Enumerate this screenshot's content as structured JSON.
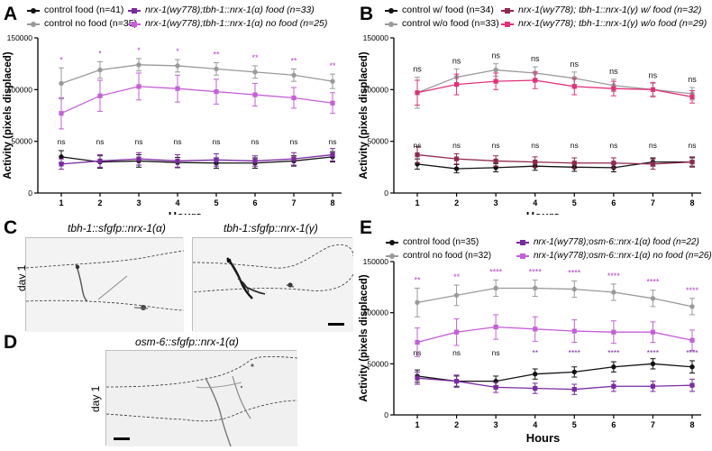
{
  "panels": {
    "A": {
      "letter": "A"
    },
    "B": {
      "letter": "B"
    },
    "C": {
      "letter": "C"
    },
    "D": {
      "letter": "D"
    },
    "E": {
      "letter": "E"
    }
  },
  "colors": {
    "black": "#111111",
    "gray": "#9a9a9a",
    "purple": "#7a2aa0",
    "violet": "#c45fd8",
    "darkred": "#8e2a4a",
    "pink": "#e0327a",
    "sig_purple": "#b340c7"
  },
  "legendA": [
    {
      "label": "control food (n=41)",
      "color": "#111111",
      "marker": "dot"
    },
    {
      "label": "control no food (n=35)",
      "color": "#9a9a9a",
      "marker": "dot"
    },
    {
      "label": "nrx-1(wy778);tbh-1::nrx-1(α) food (n=33)",
      "color": "#7a2aa0",
      "marker": "square"
    },
    {
      "label": "nrx-1(wy778);tbh-1::nrx-1(α) no food (n=25)",
      "color": "#c45fd8",
      "marker": "square"
    }
  ],
  "legendB": [
    {
      "label": "control w/ food (n=34)",
      "color": "#111111",
      "marker": "dot"
    },
    {
      "label": "control w/o food (n=33)",
      "color": "#9a9a9a",
      "marker": "dot"
    },
    {
      "label": "nrx-1(wy778); tbh-1::nrx-1(γ) w/ food (n=32)",
      "color": "#8e2a4a",
      "marker": "square"
    },
    {
      "label": "nrx-1(wy778); tbh-1::nrx-1(γ)  w/o food (n=29)",
      "color": "#e0327a",
      "marker": "square"
    }
  ],
  "legendE": [
    {
      "label": "control food (n=35)",
      "color": "#111111",
      "marker": "dot"
    },
    {
      "label": "control no food (n=32)",
      "color": "#9a9a9a",
      "marker": "dot"
    },
    {
      "label": "nrx-1(wy778);osm-6::nrx-1(α) food (n=22)",
      "color": "#7a2aa0",
      "marker": "square"
    },
    {
      "label": "nrx-1(wy778);osm-6::nrx-1(α) no food (n=26)",
      "color": "#c45fd8",
      "marker": "square"
    }
  ],
  "micrographs": {
    "c_left_title": "tbh-1::sfgfp::nrx-1(α)",
    "c_right_title": "tbh-1:sfgfp::nrx-1(γ)",
    "d_title": "osm-6::sfgfp::nrx-1(α)",
    "c_day": "day 1",
    "d_day": "day 1"
  },
  "chart_data": [
    {
      "id": "A",
      "type": "line",
      "xlabel": "Hours",
      "ylabel": "Activity (pixels displaced)",
      "x": [
        1,
        2,
        3,
        4,
        5,
        6,
        7,
        8
      ],
      "ylim": [
        0,
        150000
      ],
      "yticks": [
        0,
        50000,
        100000,
        150000
      ],
      "series": [
        {
          "name": "control food (n=41)",
          "color": "#111111",
          "marker": "dot",
          "values": [
            35000,
            30000,
            31000,
            29500,
            29000,
            29000,
            31000,
            35000
          ],
          "errors": [
            6000,
            6000,
            6000,
            5000,
            5000,
            5000,
            5000,
            5000
          ]
        },
        {
          "name": "control no food (n=35)",
          "color": "#9a9a9a",
          "marker": "dot",
          "values": [
            106000,
            119000,
            124000,
            123000,
            120000,
            117000,
            114000,
            108000
          ],
          "errors": [
            15000,
            8000,
            6000,
            6000,
            6000,
            6000,
            6000,
            7000
          ]
        },
        {
          "name": "nrx-1(wy778);tbh-1::nrx-1(α) food (n=33)",
          "color": "#7a2aa0",
          "marker": "square",
          "values": [
            28000,
            31000,
            33000,
            31000,
            32000,
            31000,
            33000,
            37000
          ],
          "errors": [
            5000,
            6000,
            6000,
            6000,
            6000,
            5000,
            6000,
            6000
          ]
        },
        {
          "name": "nrx-1(wy778);tbh-1::nrx-1(α) no food (n=25)",
          "color": "#c45fd8",
          "marker": "square",
          "values": [
            77000,
            94000,
            103000,
            101000,
            98000,
            95000,
            92000,
            87000
          ],
          "errors": [
            15000,
            15000,
            13000,
            13000,
            12000,
            11000,
            10000,
            10000
          ]
        }
      ],
      "sig_upper": [
        "*",
        "*",
        "*",
        "*",
        "**",
        "**",
        "**",
        "**"
      ],
      "sig_upper_color": "#b340c7",
      "sig_lower": [
        "ns",
        "ns",
        "ns",
        "ns",
        "ns",
        "ns",
        "ns",
        "ns"
      ],
      "sig_lower_color": "#111111"
    },
    {
      "id": "B",
      "type": "line",
      "xlabel": "Hours",
      "ylabel": "Activity (pixels displaced)",
      "x": [
        1,
        2,
        3,
        4,
        5,
        6,
        7,
        8
      ],
      "ylim": [
        0,
        150000
      ],
      "yticks": [
        0,
        50000,
        100000,
        150000
      ],
      "series": [
        {
          "name": "control w/ food (n=34)",
          "color": "#111111",
          "marker": "dot",
          "values": [
            28000,
            23500,
            24500,
            26000,
            25000,
            24500,
            30000,
            30000
          ],
          "errors": [
            5000,
            4000,
            4000,
            4000,
            4000,
            4000,
            4000,
            4000
          ]
        },
        {
          "name": "control w/o food (n=33)",
          "color": "#9a9a9a",
          "marker": "dot",
          "values": [
            97000,
            112000,
            119000,
            116000,
            111000,
            104000,
            100000,
            96000
          ],
          "errors": [
            15000,
            8000,
            6000,
            6000,
            6000,
            6000,
            6000,
            6000
          ]
        },
        {
          "name": "nrx-1(wy778); tbh-1::nrx-1(γ) w/ food (n=32)",
          "color": "#8e2a4a",
          "marker": "square",
          "values": [
            37000,
            33000,
            31000,
            30000,
            29000,
            29000,
            28000,
            30000
          ],
          "errors": [
            8000,
            5000,
            5000,
            5000,
            5000,
            5000,
            5000,
            5000
          ]
        },
        {
          "name": "nrx-1(wy778); tbh-1::nrx-1(γ)  w/o food (n=29)",
          "color": "#e0327a",
          "marker": "square",
          "values": [
            97000,
            105000,
            108000,
            109000,
            103000,
            101000,
            100000,
            93000
          ],
          "errors": [
            12000,
            10000,
            8000,
            8000,
            8000,
            7000,
            7000,
            6000
          ]
        }
      ],
      "sig_upper": [
        "ns",
        "ns",
        "ns",
        "ns",
        "ns",
        "ns",
        "ns",
        "ns"
      ],
      "sig_upper_color": "#111111",
      "sig_lower": [
        "ns",
        "ns",
        "ns",
        "ns",
        "ns",
        "ns",
        "ns",
        "ns"
      ],
      "sig_lower_color": "#111111"
    },
    {
      "id": "E",
      "type": "line",
      "xlabel": "Hours",
      "ylabel": "Activity (pixels displaced)",
      "x": [
        1,
        2,
        3,
        4,
        5,
        6,
        7,
        8
      ],
      "ylim": [
        0,
        150000
      ],
      "yticks": [
        0,
        50000,
        100000,
        150000
      ],
      "series": [
        {
          "name": "control food (n=35)",
          "color": "#111111",
          "marker": "dot",
          "values": [
            38000,
            33000,
            33000,
            40000,
            42000,
            47000,
            50000,
            47000
          ],
          "errors": [
            6000,
            5000,
            5000,
            5000,
            5000,
            5000,
            5000,
            6000
          ]
        },
        {
          "name": "control no food (n=32)",
          "color": "#9a9a9a",
          "marker": "dot",
          "values": [
            110000,
            117000,
            124000,
            124000,
            123000,
            120000,
            114000,
            106000
          ],
          "errors": [
            14000,
            10000,
            8000,
            8000,
            8000,
            8000,
            8000,
            8000
          ]
        },
        {
          "name": "nrx-1(wy778);osm-6::nrx-1(α) food (n=22)",
          "color": "#7a2aa0",
          "marker": "square",
          "values": [
            36000,
            33000,
            27000,
            26000,
            25000,
            28000,
            28000,
            29000
          ],
          "errors": [
            6000,
            6000,
            5000,
            5000,
            5000,
            5000,
            5000,
            6000
          ]
        },
        {
          "name": "nrx-1(wy778);osm-6::nrx-1(α) no food (n=26)",
          "color": "#c45fd8",
          "marker": "square",
          "values": [
            71000,
            81000,
            86000,
            84000,
            82000,
            81000,
            81000,
            73000
          ],
          "errors": [
            14000,
            13000,
            12000,
            12000,
            11000,
            11000,
            10000,
            10000
          ]
        }
      ],
      "sig_upper": [
        "**",
        "**",
        "****",
        "****",
        "****",
        "****",
        "****",
        "****"
      ],
      "sig_upper_color": "#b340c7",
      "sig_lower": [
        "ns",
        "ns",
        "ns",
        "**",
        "****",
        "****",
        "****",
        "****"
      ],
      "sig_lower_colors": [
        "#111111",
        "#111111",
        "#111111",
        "#7a2aa0",
        "#7a2aa0",
        "#7a2aa0",
        "#7a2aa0",
        "#7a2aa0"
      ]
    }
  ]
}
